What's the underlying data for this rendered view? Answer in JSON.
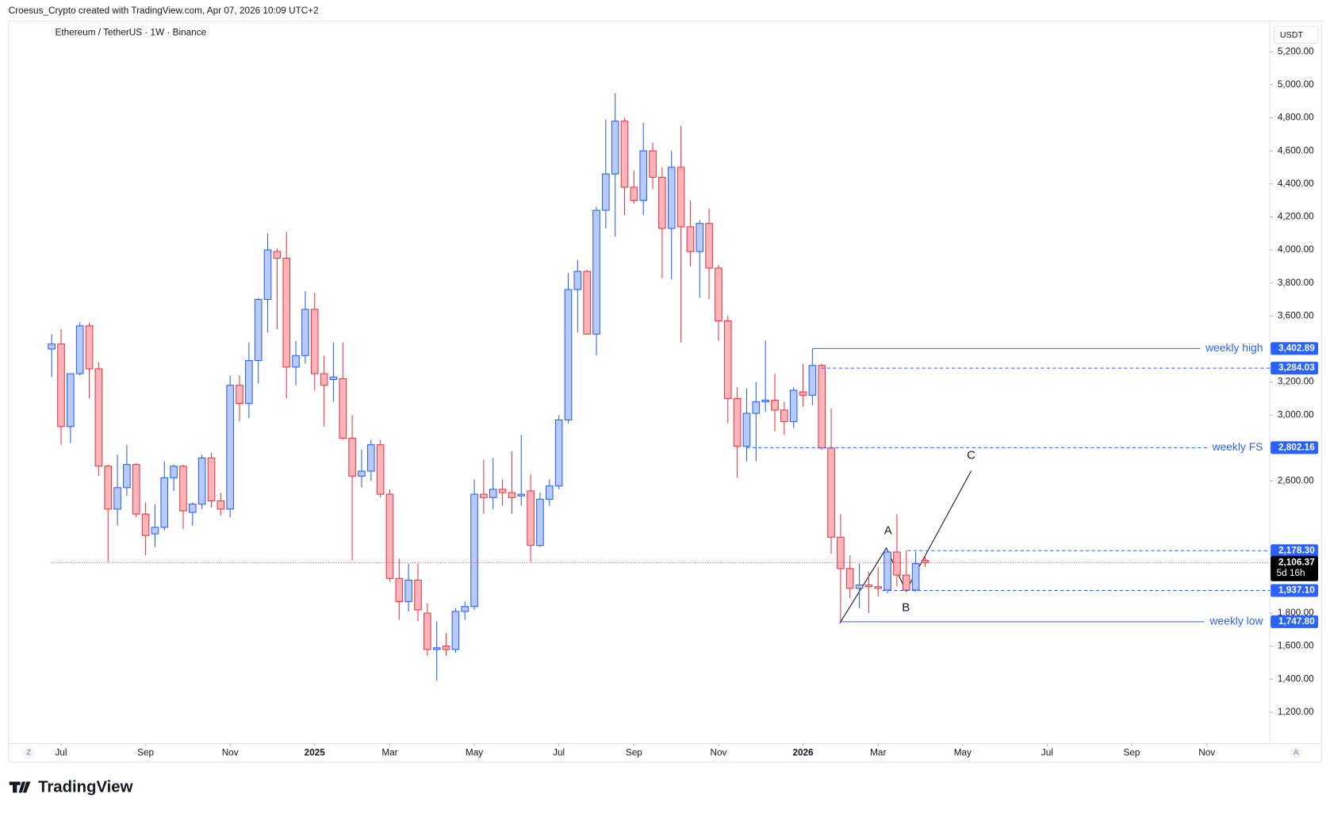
{
  "header": {
    "credit": "Croesus_Crypto created with TradingView.com, Apr 07, 2026 10:09 UTC+2",
    "symbol": "Ethereum / TetherUS · 1W · Binance",
    "currency": "USDT",
    "brand": "TradingView",
    "left_button": "Z",
    "right_button": "A"
  },
  "chart_data": {
    "type": "candlestick",
    "up_color": "#2962ff",
    "up_fill": "#b8cbf7",
    "down_color": "#f23645",
    "down_fill": "#f8b6ba",
    "open": [
      3400,
      3430,
      2930,
      3250,
      3540,
      3280,
      2690,
      2430,
      2560,
      2700,
      2400,
      2280,
      2320,
      2620,
      2690,
      2410,
      2460,
      2740,
      2480,
      2430,
      3180,
      3070,
      3330,
      3700,
      3990,
      3950,
      3290,
      3360,
      3640,
      3250,
      3215,
      3220,
      2860,
      2630,
      2660,
      2820,
      2520,
      2010,
      1870,
      2000,
      1800,
      1580,
      1600,
      1580,
      1810,
      1840,
      2520,
      2500,
      2550,
      2530,
      2510,
      2540,
      2210,
      2490,
      2570,
      2970,
      3760,
      3870,
      3490,
      4240,
      4460,
      4780,
      4380,
      4300,
      4600,
      4440,
      4130,
      4500,
      4140,
      3990,
      4160,
      3890,
      3570,
      3100,
      2810,
      3010,
      3080,
      3090,
      3030,
      2960,
      3140,
      3120,
      3300,
      2800,
      2260,
      2070,
      1950,
      1970,
      1960,
      1940,
      2170,
      2030,
      1940,
      2120
    ],
    "high": [
      3490,
      3520,
      3250,
      3560,
      3560,
      3320,
      2700,
      2760,
      2820,
      2710,
      2470,
      2460,
      2720,
      2700,
      2700,
      2470,
      2760,
      2770,
      2530,
      3240,
      3240,
      3440,
      3710,
      4100,
      4010,
      4110,
      3450,
      3750,
      3740,
      3360,
      3440,
      3440,
      3000,
      2790,
      2850,
      2850,
      2550,
      2130,
      2100,
      2100,
      1860,
      1750,
      1680,
      1830,
      1870,
      2610,
      2730,
      2740,
      2610,
      2780,
      2880,
      2640,
      2530,
      2610,
      3000,
      3860,
      3940,
      3880,
      4260,
      4790,
      4950,
      4800,
      4480,
      4770,
      4650,
      4500,
      4600,
      4750,
      4300,
      4180,
      4250,
      3910,
      3600,
      3170,
      3160,
      3200,
      3450,
      3250,
      3080,
      3170,
      3310,
      3402.89,
      3310,
      3040,
      2400,
      2150,
      2100,
      2050,
      2080,
      2170,
      2400,
      2180,
      2170,
      2150
    ],
    "low": [
      3230,
      2820,
      2830,
      3240,
      3100,
      2630,
      2110,
      2330,
      2510,
      2380,
      2150,
      2200,
      2300,
      2540,
      2310,
      2330,
      2430,
      2440,
      2390,
      2380,
      2960,
      2980,
      3190,
      3500,
      3520,
      3100,
      3180,
      3310,
      3150,
      2930,
      3080,
      2850,
      2120,
      2560,
      2600,
      2500,
      1990,
      1760,
      1810,
      1750,
      1540,
      1390,
      1540,
      1560,
      1760,
      1820,
      2400,
      2430,
      2450,
      2400,
      2450,
      2110,
      2200,
      2450,
      2550,
      2950,
      3500,
      3490,
      3360,
      4130,
      4080,
      4210,
      4280,
      4210,
      4370,
      3830,
      3820,
      3440,
      3900,
      3710,
      3700,
      3450,
      2950,
      2620,
      2720,
      2720,
      3020,
      2900,
      2880,
      2920,
      3050,
      3060,
      2790,
      2160,
      1747.8,
      1890,
      1830,
      1800,
      1900,
      1920,
      1960,
      1937.1,
      1930,
      2080
    ],
    "close": [
      3430,
      2930,
      3250,
      3540,
      3280,
      2690,
      2430,
      2560,
      2700,
      2400,
      2270,
      2320,
      2620,
      2690,
      2420,
      2460,
      2740,
      2480,
      2430,
      3180,
      3070,
      3330,
      3700,
      4000,
      3950,
      3290,
      3360,
      3640,
      3250,
      3180,
      3230,
      2860,
      2630,
      2660,
      2820,
      2520,
      2010,
      1870,
      2000,
      1820,
      1580,
      1590,
      1580,
      1810,
      1840,
      2520,
      2500,
      2550,
      2530,
      2500,
      2520,
      2210,
      2490,
      2570,
      2970,
      3760,
      3870,
      3490,
      4240,
      4460,
      4780,
      4380,
      4300,
      4600,
      4440,
      4130,
      4500,
      4140,
      3990,
      4160,
      3890,
      3570,
      3100,
      2810,
      3010,
      3080,
      3090,
      3030,
      2960,
      3150,
      3120,
      3300,
      2800,
      2260,
      2070,
      1950,
      1970,
      1960,
      1950,
      2170,
      2030,
      1940,
      2100,
      2106.37
    ],
    "xlim": [
      -4.6,
      129.7
    ],
    "xticks": [
      {
        "value": 1,
        "label": "Jul"
      },
      {
        "value": 10,
        "label": "Sep"
      },
      {
        "value": 19,
        "label": "Nov"
      },
      {
        "value": 28,
        "label": "2025"
      },
      {
        "value": 36,
        "label": "Mar"
      },
      {
        "value": 45,
        "label": "May"
      },
      {
        "value": 54,
        "label": "Jul"
      },
      {
        "value": 62,
        "label": "Sep"
      },
      {
        "value": 71,
        "label": "Nov"
      },
      {
        "value": 80,
        "label": "2026"
      },
      {
        "value": 88,
        "label": "Mar"
      },
      {
        "value": 97,
        "label": "May"
      },
      {
        "value": 106,
        "label": "Jul"
      },
      {
        "value": 115,
        "label": "Sep"
      },
      {
        "value": 123,
        "label": "Nov"
      }
    ],
    "ylim": [
      1010,
      5370
    ],
    "yticks": [
      {
        "value": 1200,
        "label": "1,200.00"
      },
      {
        "value": 1400,
        "label": "1,400.00"
      },
      {
        "value": 1600,
        "label": "1,600.00"
      },
      {
        "value": 1800,
        "label": "1,800.00"
      },
      {
        "value": 2600,
        "label": "2,600.00"
      },
      {
        "value": 2800,
        "label": "2,800.00"
      },
      {
        "value": 3000,
        "label": "3,000.00"
      },
      {
        "value": 3200,
        "label": "3,200.00"
      },
      {
        "value": 3600,
        "label": "3,600.00"
      },
      {
        "value": 3800,
        "label": "3,800.00"
      },
      {
        "value": 4000,
        "label": "4,000.00"
      },
      {
        "value": 4200,
        "label": "4,200.00"
      },
      {
        "value": 4400,
        "label": "4,400.00"
      },
      {
        "value": 4600,
        "label": "4,600.00"
      },
      {
        "value": 4800,
        "label": "4,800.00"
      },
      {
        "value": 5000,
        "label": "5,000.00"
      },
      {
        "value": 5200,
        "label": "5,200.00"
      }
    ],
    "grid": false,
    "last_price": {
      "value": 2106.37,
      "label": "2,106.37",
      "countdown": "5d 16h"
    },
    "levels": [
      {
        "name": "weekly high",
        "value": 3402.89,
        "label": "3,402.89",
        "style": "solid"
      },
      {
        "value": 3284.03,
        "label": "3,284.03",
        "style": "dashed"
      },
      {
        "name": "weekly FS",
        "value": 2802.16,
        "label": "2,802.16",
        "style": "dashed"
      },
      {
        "value": 2178.3,
        "label": "2,178.30",
        "style": "dashed"
      },
      {
        "value": 1937.1,
        "label": "1,937.10",
        "style": "dashed"
      },
      {
        "name": "weekly low",
        "value": 1747.8,
        "label": "1,747.80",
        "style": "solid"
      }
    ],
    "annotations": [
      "A",
      "B",
      "C"
    ]
  }
}
